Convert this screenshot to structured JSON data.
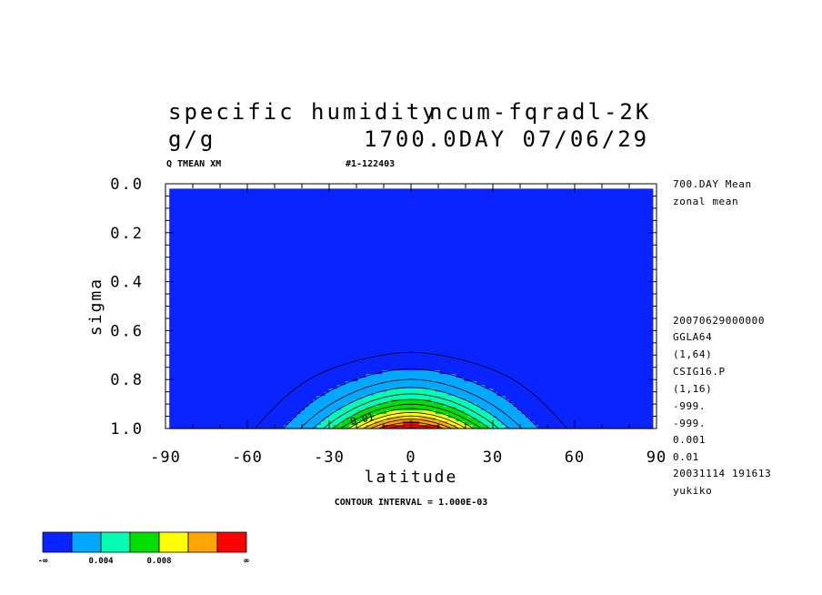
{
  "chart_data": {
    "type": "heatmap",
    "title_line1_left": "specific humidity",
    "title_line1_right": "ncum-fqradl-2K",
    "title_line2_left": "g/g",
    "title_line2_right": "1700.0DAY 07/06/29",
    "subtitle_left": "Q TMEAN XM",
    "subtitle_right": "#1-122403",
    "xlabel": "latitude",
    "ylabel": "sigma",
    "xlim": [
      -90,
      90
    ],
    "ylim": [
      0.0,
      1.0
    ],
    "y_inverted": true,
    "x_ticks": [
      "-90",
      "-60",
      "-30",
      "0",
      "30",
      "60",
      "90"
    ],
    "x_tick_values": [
      -90,
      -60,
      -30,
      0,
      30,
      60,
      90
    ],
    "y_ticks": [
      "0.0",
      "0.2",
      "0.4",
      "0.6",
      "0.8",
      "1.0"
    ],
    "y_tick_values": [
      0.0,
      0.2,
      0.4,
      0.6,
      0.8,
      1.0
    ],
    "contour_interval_text": "CONTOUR INTERVAL = 1.000E-03",
    "contour_label": "0.01",
    "contour_levels": [
      0.001,
      0.002,
      0.003,
      0.004,
      0.005,
      0.006,
      0.007,
      0.008,
      0.009,
      0.01,
      0.011,
      0.012,
      0.013,
      0.014
    ],
    "color_scale": [
      "#0a24ff",
      "#00a8ff",
      "#00ffb4",
      "#00e000",
      "#ffff00",
      "#ffa400",
      "#ff0000",
      "#d40000"
    ],
    "color_bounds": [
      0.0,
      0.002,
      0.004,
      0.006,
      0.008,
      0.01,
      0.012
    ],
    "colorbar_labels": [
      "-∞",
      "0.004",
      "0.008",
      "∞"
    ],
    "colorbar_colors": [
      "#0a24ff",
      "#00a8ff",
      "#00ffb4",
      "#00e000",
      "#ffff00",
      "#ffa400",
      "#ff0000"
    ],
    "approx_field_peak": 0.0145,
    "right_info": [
      "700.DAY Mean",
      "zonal mean",
      "20070629000000",
      "GGLA64",
      "(1,64)",
      "CSIG16.P",
      "(1,16)",
      "-999.",
      "-999.",
      "0.001",
      "0.01",
      "20031114 191613",
      "yukiko"
    ]
  }
}
